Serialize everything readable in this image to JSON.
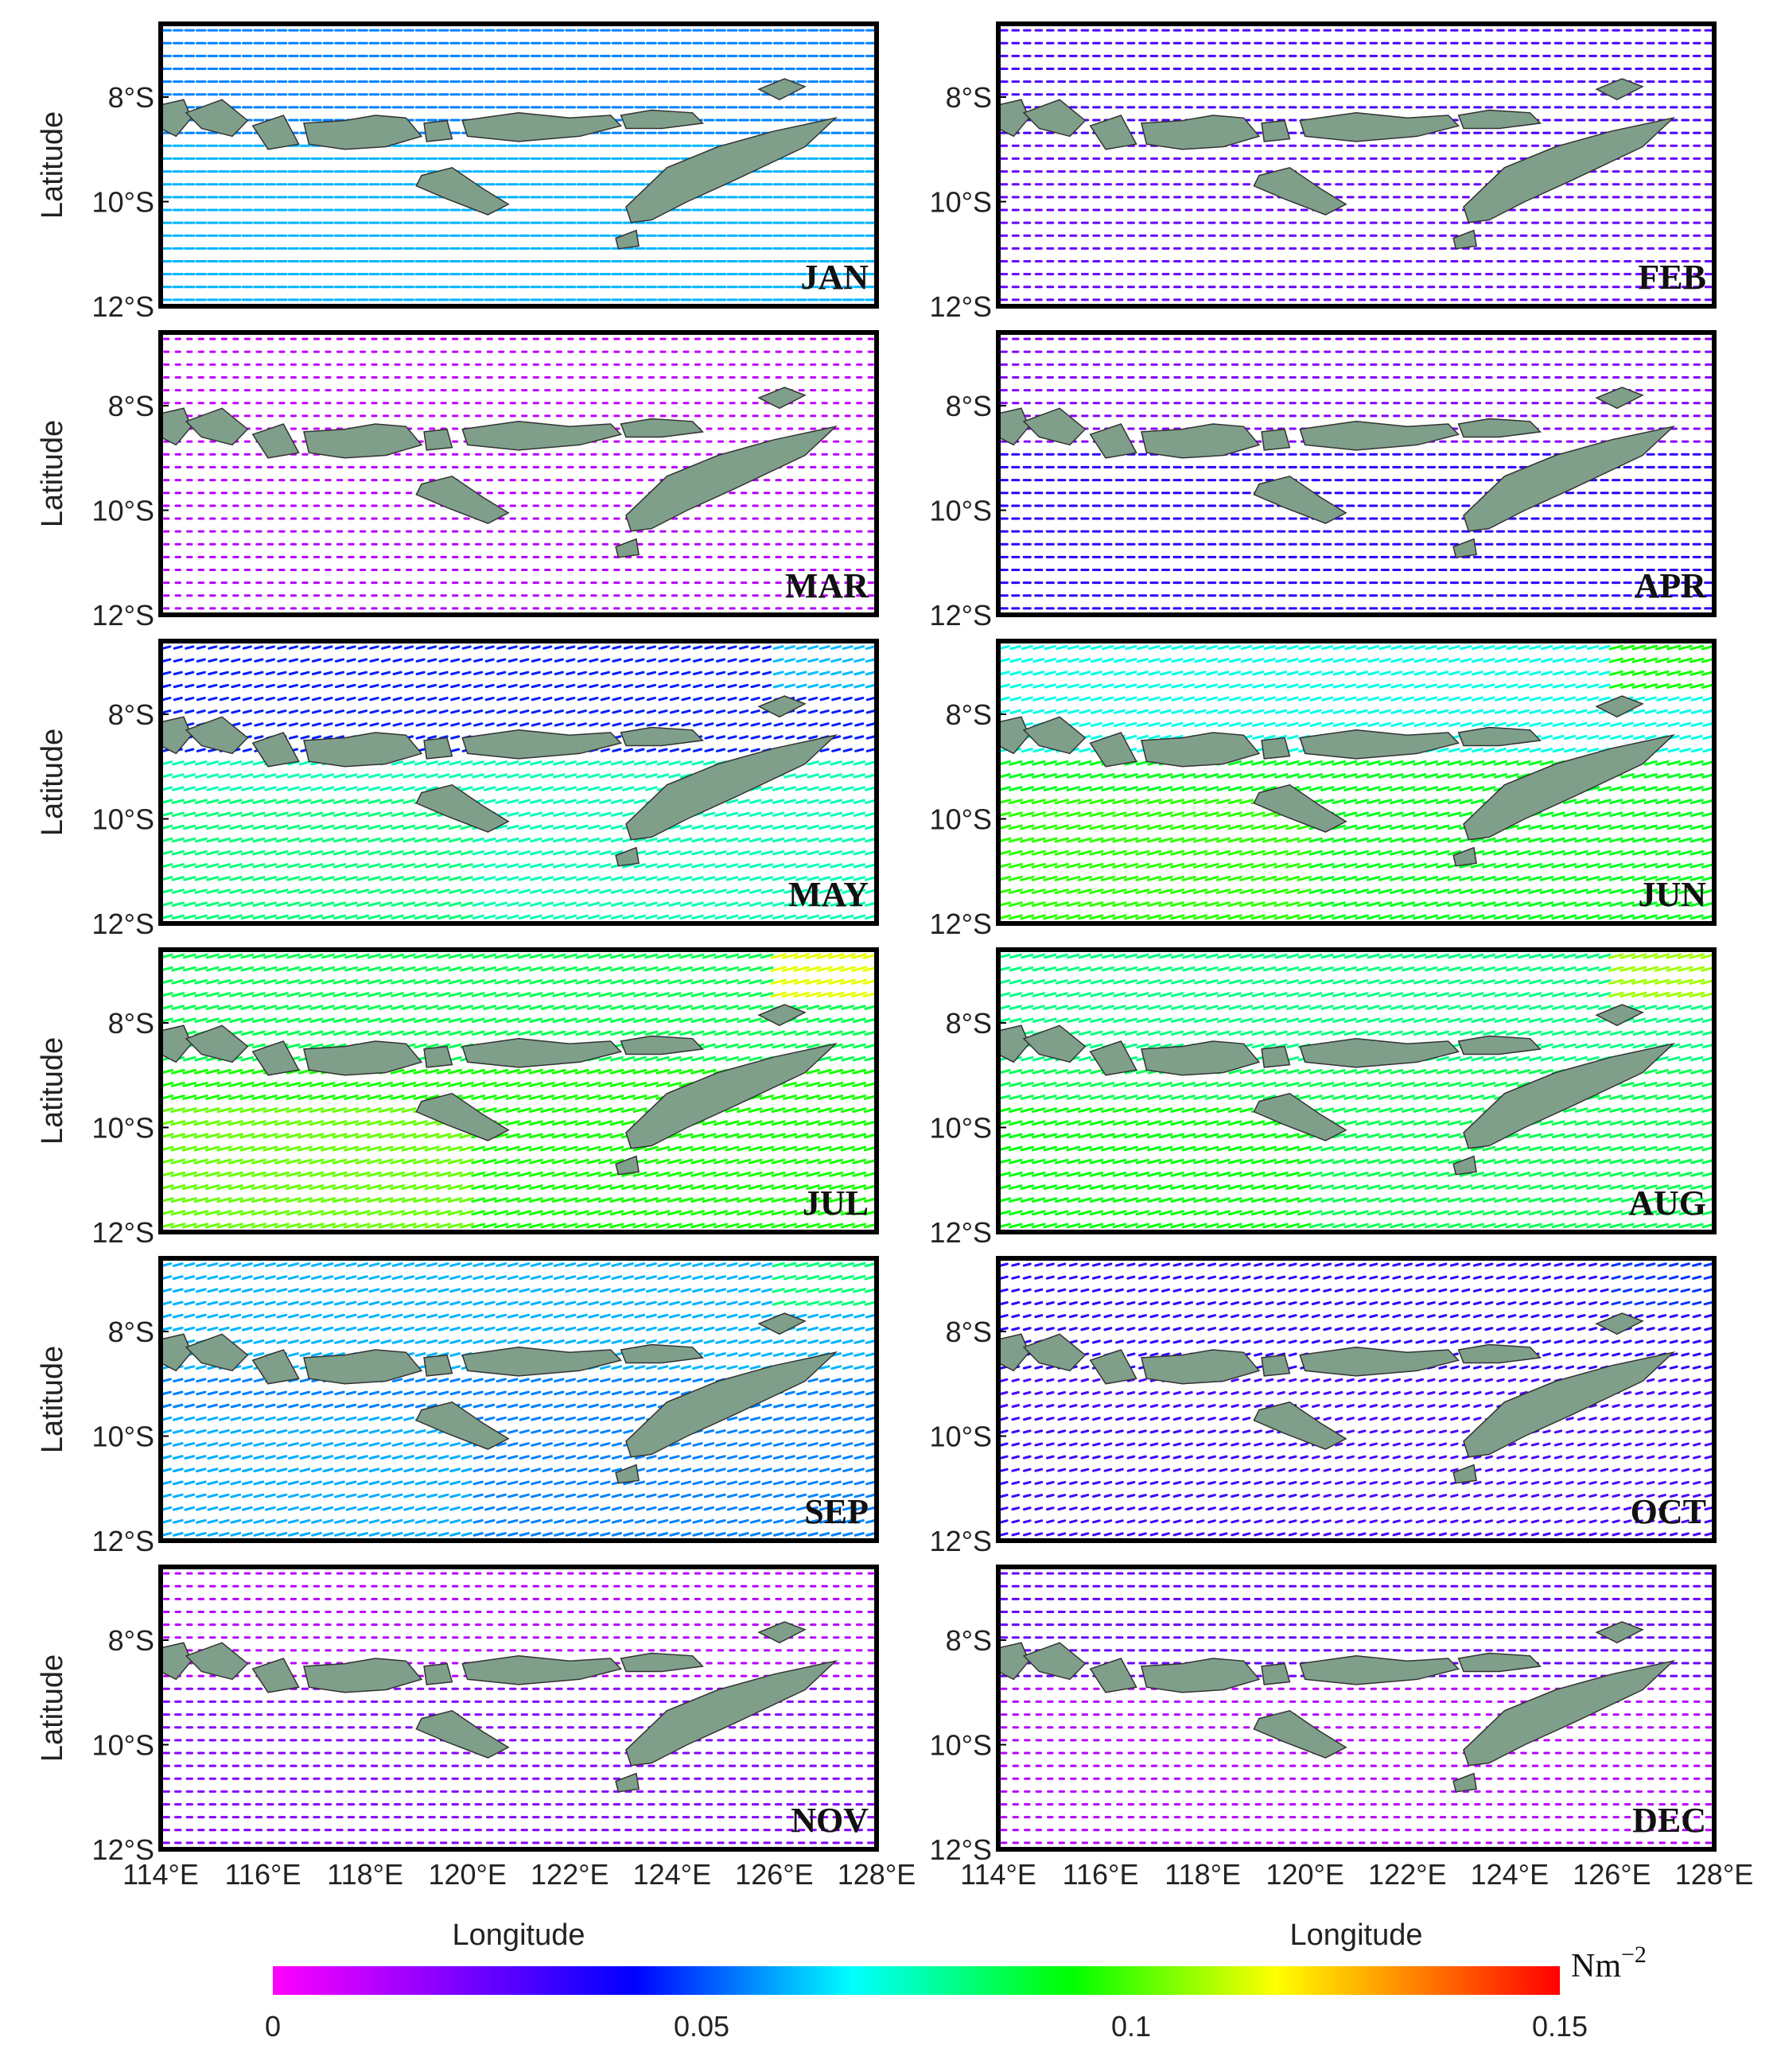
{
  "panels": [
    {
      "label": "JAN"
    },
    {
      "label": "FEB"
    },
    {
      "label": "MAR"
    },
    {
      "label": "APR"
    },
    {
      "label": "MAY"
    },
    {
      "label": "JUN"
    },
    {
      "label": "JUL"
    },
    {
      "label": "AUG"
    },
    {
      "label": "SEP"
    },
    {
      "label": "OCT"
    },
    {
      "label": "NOV"
    },
    {
      "label": "DEC"
    }
  ],
  "axes": {
    "ylabel": "Latitude",
    "xlabel": "Longitude",
    "yticks": [
      "8°S",
      "10°S",
      "12°S"
    ],
    "xticks": [
      "114°E",
      "116°E",
      "118°E",
      "120°E",
      "122°E",
      "124°E",
      "126°E",
      "128°E"
    ]
  },
  "colorbar": {
    "unit": "Nm",
    "unit_exp": "−2",
    "ticks": [
      "0",
      "0.05",
      "0.1",
      "0.15"
    ],
    "colors": [
      "#ff00ff",
      "#8000ff",
      "#0000ff",
      "#00ffff",
      "#00ff00",
      "#ffff00",
      "#ff8000",
      "#ff0000"
    ]
  },
  "land_color": "#7f9f8a",
  "monthly_strength": {
    "JAN": {
      "north": 0.055,
      "south": 0.06
    },
    "FEB": {
      "north": 0.03,
      "south": 0.025
    },
    "MAR": {
      "north": 0.01,
      "south": 0.012
    },
    "APR": {
      "north": 0.02,
      "south": 0.035
    },
    "MAY": {
      "north": 0.045,
      "south": 0.075
    },
    "JUN": {
      "north": 0.07,
      "south": 0.09
    },
    "JUL": {
      "north": 0.085,
      "south": 0.095
    },
    "AUG": {
      "north": 0.08,
      "south": 0.085
    },
    "SEP": {
      "north": 0.06,
      "south": 0.055
    },
    "OCT": {
      "north": 0.035,
      "south": 0.03
    },
    "NOV": {
      "north": 0.012,
      "south": 0.02
    },
    "DEC": {
      "north": 0.025,
      "south": 0.012
    }
  }
}
